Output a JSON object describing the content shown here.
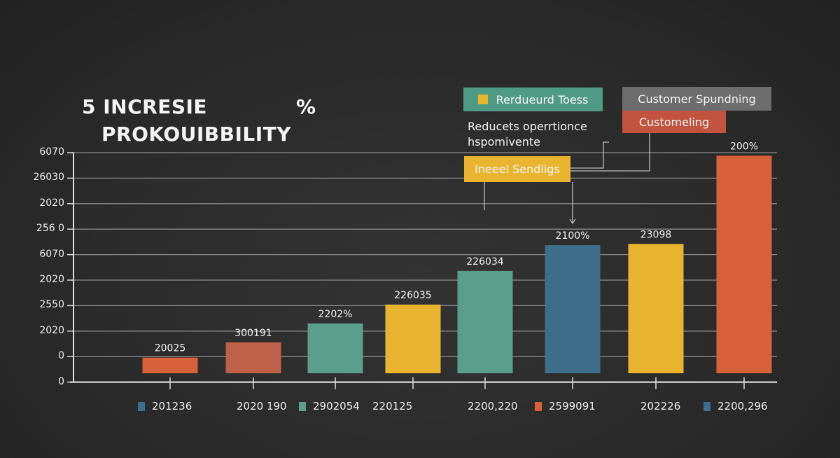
{
  "title": {
    "line1": "5 INCRESIE",
    "percent": "%",
    "line2": "PROKOUIBBILITY"
  },
  "annotations": {
    "green_box": "Rerdueurd Toess",
    "gray_box": "Customer Spundning",
    "red_box": "Customeling",
    "note_line1": "Reducets operrtionce",
    "note_line2": "hspomivente",
    "yellow_box": "Ineeel Sendligs"
  },
  "colors": {
    "orange": "#d9613a",
    "brick": "#bf6049",
    "teal": "#5b9e8b",
    "yellow": "#e9b530",
    "blue": "#3e6e8a",
    "green_box": "#4f9a84",
    "gray_box": "#6d6d6d",
    "red_box": "#c2533f"
  },
  "chart_data": {
    "type": "bar",
    "title": "5 INCRESIE % PROKOUIBBILITY",
    "grid": true,
    "y_tick_labels": [
      "6070",
      "26030",
      "2020",
      "256 0",
      "6070",
      "2020",
      "2550",
      "2020",
      "0",
      "0"
    ],
    "bars": [
      {
        "label": "20025",
        "value": 0.96,
        "color": "#d9613a"
      },
      {
        "label": "300191",
        "value": 1.56,
        "color": "#bf6049"
      },
      {
        "label": "2202%",
        "value": 2.3,
        "color": "#5b9e8b"
      },
      {
        "label": "226035",
        "value": 3.04,
        "color": "#e9b530"
      },
      {
        "label": "226034",
        "value": 4.36,
        "color": "#5b9e8b"
      },
      {
        "label": "2100%",
        "value": 5.37,
        "color": "#3e6e8a"
      },
      {
        "label": "23098",
        "value": 5.42,
        "color": "#e9b530"
      },
      {
        "label": "200%",
        "value": 8.88,
        "color": "#d9613a"
      }
    ],
    "legend": [
      {
        "label": "201236",
        "color": "#3e6e8a"
      },
      {
        "label": "2020 190",
        "color": null
      },
      {
        "label": "2902054",
        "color": "#5b9e8b"
      },
      {
        "label": "220125",
        "color": null
      },
      {
        "label": "2200,220",
        "color": null
      },
      {
        "label": "2599091",
        "color": "#d9613a"
      },
      {
        "label": "202226",
        "color": null
      },
      {
        "label": "2200,296",
        "color": "#3e6e8a"
      }
    ]
  }
}
